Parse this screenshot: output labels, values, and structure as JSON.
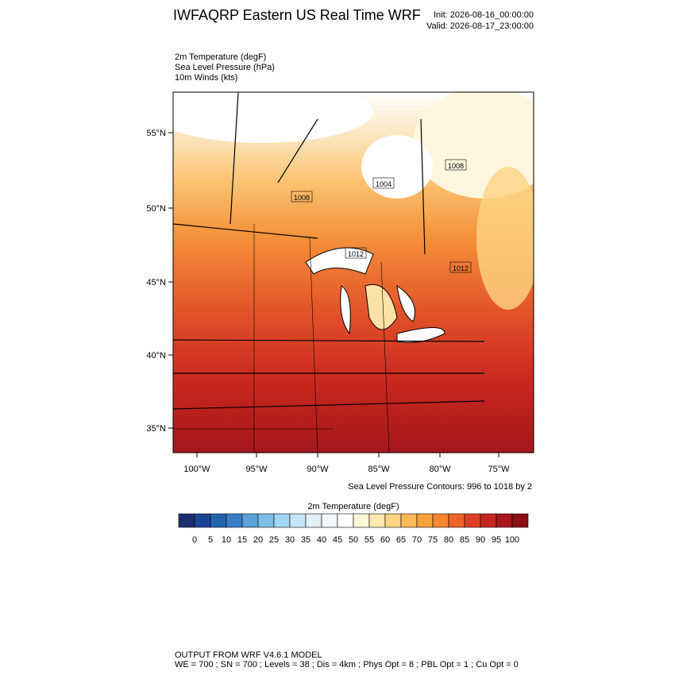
{
  "header": {
    "title": "IWFAQRP Eastern US Real Time WRF",
    "init": "Init: 2026-08-16_00:00:00",
    "valid": "Valid: 2026-08-17_23:00:00"
  },
  "fields": [
    "2m Temperature   (degF)",
    "Sea Level Pressure   (hPa)",
    "10m Winds   (kts)"
  ],
  "map": {
    "lat_labels": [
      "55°N",
      "50°N",
      "45°N",
      "40°N",
      "35°N"
    ],
    "lon_labels": [
      "100°W",
      "95°W",
      "90°W",
      "85°W",
      "80°W",
      "75°W"
    ],
    "contour_labels": [
      "1008",
      "1004",
      "1008",
      "1012",
      "1012"
    ],
    "contour_note": "Sea Level Pressure Contours: 996 to 1018 by 2"
  },
  "colorbar": {
    "title": "2m Temperature  (degF)",
    "colors": [
      "#1b2f6e",
      "#1d4595",
      "#2462b0",
      "#3a7fc5",
      "#5aa2d8",
      "#7dbde6",
      "#a3d6f2",
      "#c6e6f6",
      "#e2f1f8",
      "#f2f6f8",
      "#ffffff",
      "#fff6da",
      "#fee8b0",
      "#fdd585",
      "#fbbb57",
      "#f8a23a",
      "#f5862e",
      "#ee6428",
      "#dc4024",
      "#c52622",
      "#a9171d",
      "#8a1016"
    ],
    "labels": [
      "0",
      "5",
      "10",
      "15",
      "20",
      "25",
      "30",
      "35",
      "40",
      "45",
      "50",
      "55",
      "60",
      "65",
      "70",
      "75",
      "80",
      "85",
      "90",
      "95",
      "100"
    ]
  },
  "footer": [
    "OUTPUT FROM WRF V4.6.1 MODEL",
    "WE = 700 ; SN = 700 ; Levels = 38 ; Dis = 4km ; Phys Opt = 8 ; PBL Opt = 1 ; Cu Opt = 0"
  ]
}
